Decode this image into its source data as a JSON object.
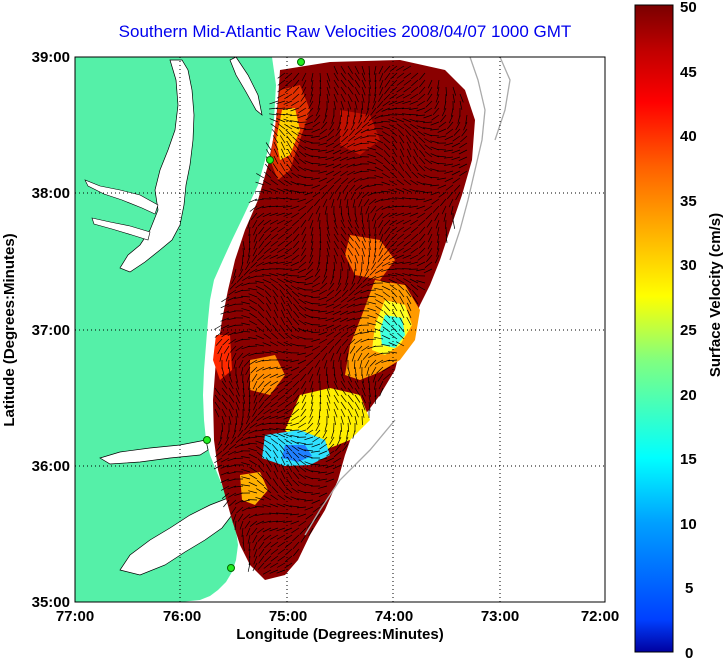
{
  "title": "Southern Mid-Atlantic Raw Velocities 2008/04/07 1000 GMT",
  "x_axis": {
    "label": "Longitude (Degrees:Minutes)",
    "ticks": [
      "77:00",
      "76:00",
      "75:00",
      "74:00",
      "73:00",
      "72:00"
    ]
  },
  "y_axis": {
    "label": "Latitude (Degrees:Minutes)",
    "ticks": [
      "39:00",
      "38:00",
      "37:00",
      "36:00",
      "35:00"
    ]
  },
  "colorbar": {
    "label": "Surface Velocity (cm/s)",
    "ticks": [
      "50",
      "45",
      "40",
      "35",
      "30",
      "25",
      "20",
      "15",
      "10",
      "5",
      "0"
    ],
    "range": [
      0,
      50
    ]
  },
  "colors": {
    "land": "#55f0a8",
    "title": "#0000ee",
    "station": "#22ee22"
  },
  "map_extent": {
    "lon": [
      -77,
      -72
    ],
    "lat": [
      35,
      39
    ]
  }
}
